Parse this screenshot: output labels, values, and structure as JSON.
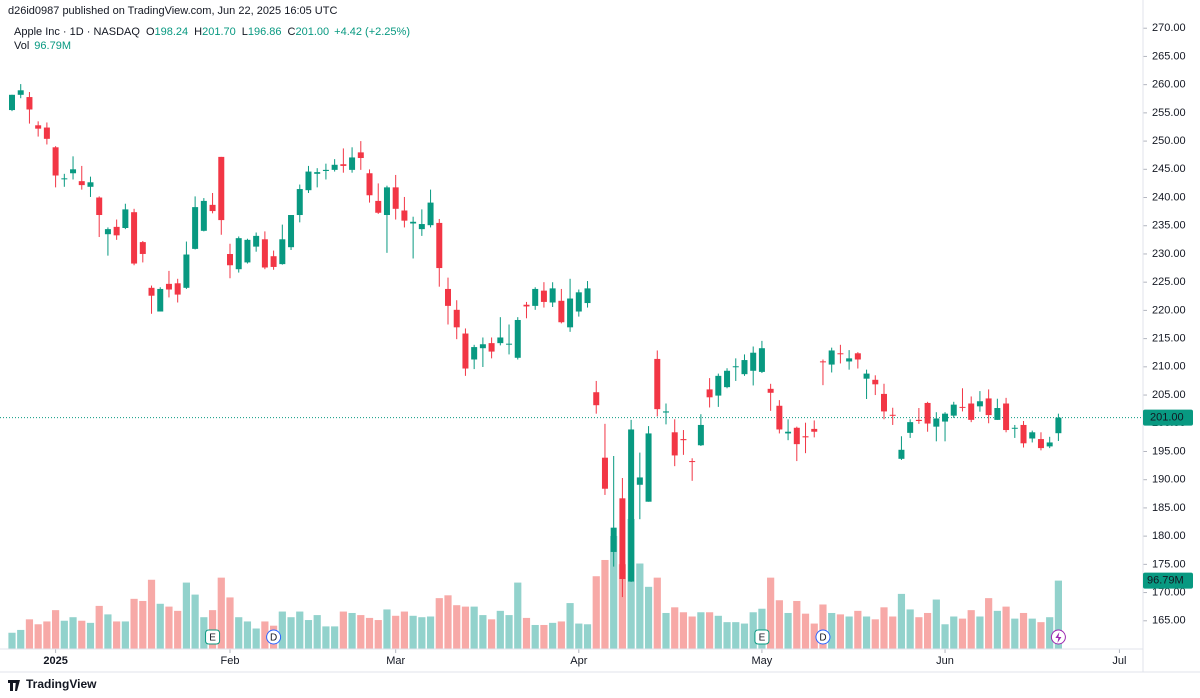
{
  "header": {
    "published": "d26id0987 published on TradingView.com, Jun 22, 2025 16:05 UTC",
    "symbol": "Apple Inc · 1D · NASDAQ",
    "ohlc_legend": [
      {
        "key": "O",
        "value": "198.24"
      },
      {
        "key": "H",
        "value": "201.70"
      },
      {
        "key": "L",
        "value": "196.86"
      },
      {
        "key": "C",
        "value": "201.00"
      }
    ],
    "change": "+4.42 (+2.25%)",
    "vol_key": "Vol",
    "vol_value": "96.79M"
  },
  "footer": {
    "brand": "TradingView"
  },
  "chart_data": {
    "type": "candlestick",
    "up_color": "#089981",
    "down_color": "#f23645",
    "volume_up_color": "#92d2cc",
    "volume_down_color": "#f7a9a7",
    "ylim": [
      160,
      275
    ],
    "yticks": [
      {
        "value": 165,
        "label": "165.00"
      },
      {
        "value": 170,
        "label": "170.00"
      },
      {
        "value": 175,
        "label": "175.00"
      },
      {
        "value": 180,
        "label": "180.00"
      },
      {
        "value": 185,
        "label": "185.00"
      },
      {
        "value": 190,
        "label": "190.00"
      },
      {
        "value": 195,
        "label": "195.00"
      },
      {
        "value": 200,
        "label": "200.00"
      },
      {
        "value": 205,
        "label": "205.00"
      },
      {
        "value": 210,
        "label": "210.00"
      },
      {
        "value": 215,
        "label": "215.00"
      },
      {
        "value": 220,
        "label": "220.00"
      },
      {
        "value": 225,
        "label": "225.00"
      },
      {
        "value": 230,
        "label": "230.00"
      },
      {
        "value": 235,
        "label": "235.00"
      },
      {
        "value": 240,
        "label": "240.00"
      },
      {
        "value": 245,
        "label": "245.00"
      },
      {
        "value": 250,
        "label": "250.00"
      },
      {
        "value": 255,
        "label": "255.00"
      },
      {
        "value": 260,
        "label": "260.00"
      },
      {
        "value": 265,
        "label": "265.00"
      },
      {
        "value": 270,
        "label": "270.00"
      }
    ],
    "xticks": [
      {
        "value": 5,
        "label": "2025"
      },
      {
        "value": 25,
        "label": "Feb"
      },
      {
        "value": 44,
        "label": "Mar"
      },
      {
        "value": 65,
        "label": "Apr"
      },
      {
        "value": 86,
        "label": "May"
      },
      {
        "value": 107,
        "label": "Jun"
      },
      {
        "value": 127,
        "label": "Jul"
      }
    ],
    "last_price": {
      "value": 201.0,
      "label": "201.00"
    },
    "last_volume_label": "96.79M",
    "events": [
      {
        "index": 23,
        "label": "E"
      },
      {
        "index": 30,
        "label": "D"
      },
      {
        "index": 86,
        "label": "E"
      },
      {
        "index": 93,
        "label": "D"
      }
    ],
    "open": [
      255.5,
      258.2,
      257.8,
      252.8,
      252.4,
      248.9,
      243.3,
      244.3,
      242.9,
      241.9,
      240.0,
      233.5,
      234.8,
      234.6,
      237.4,
      232.1,
      224.0,
      219.8,
      224.7,
      224.8,
      224.0,
      230.9,
      234.1,
      238.7,
      247.2,
      229.99,
      227.3,
      228.5,
      231.3,
      232.6,
      229.6,
      228.2,
      231.2,
      236.9,
      241.3,
      244.2,
      244.7,
      244.9,
      245.9,
      244.9,
      248.0,
      244.3,
      239.4,
      236.9,
      241.8,
      237.7,
      235.4,
      234.4,
      235.1,
      235.5,
      223.8,
      220.1,
      215.9,
      211.3,
      213.3,
      214.2,
      214.2,
      213.99,
      211.6,
      221.0,
      220.8,
      223.5,
      221.4,
      221.7,
      217.0,
      219.8,
      221.3,
      205.5,
      193.9,
      177.2,
      186.7,
      171.95,
      189.1,
      186.1,
      211.4,
      201.9,
      198.4,
      197.2,
      193.3,
      196.1,
      206.0,
      204.9,
      206.4,
      210.0,
      208.7,
      209.3,
      209.1,
      206.1,
      203.1,
      198.2,
      199.2,
      197.7,
      199.0,
      210.97,
      210.4,
      212.4,
      210.95,
      212.4,
      207.9,
      207.7,
      205.2,
      201.5,
      193.7,
      198.3,
      200.6,
      203.6,
      199.4,
      200.3,
      201.35,
      202.9,
      203.5,
      203.0,
      204.4,
      200.6,
      203.5,
      199.1,
      199.7,
      197.3,
      197.2,
      195.9,
      198.24
    ],
    "high": [
      258.2,
      260.1,
      258.7,
      253.5,
      253.3,
      249.1,
      244.2,
      247.3,
      245.6,
      243.7,
      240.2,
      234.7,
      236.1,
      238.9,
      238.0,
      232.3,
      224.4,
      224.1,
      227.0,
      225.6,
      232.2,
      240.2,
      239.9,
      240.8,
      247.2,
      231.8,
      233.1,
      232.7,
      233.8,
      234.0,
      230.6,
      235.2,
      236.9,
      242.3,
      245.6,
      245.2,
      246.0,
      246.8,
      248.7,
      248.9,
      250.0,
      244.98,
      242.5,
      242.1,
      244.0,
      240.1,
      236.6,
      237.9,
      241.4,
      236.2,
      225.8,
      221.8,
      216.8,
      213.9,
      215.2,
      215.2,
      218.8,
      217.5,
      218.8,
      221.5,
      224.1,
      225.0,
      224.99,
      223.8,
      225.6,
      223.7,
      225.2,
      207.5,
      199.9,
      194.2,
      190.3,
      200.6,
      194.8,
      199.5,
      212.9,
      203.5,
      200.7,
      198.8,
      193.8,
      201.6,
      208.0,
      208.8,
      209.75,
      211.5,
      212.2,
      213.6,
      214.6,
      206.99,
      204.1,
      200.7,
      199.4,
      200.1,
      200.5,
      211.3,
      213.4,
      213.9,
      212.96,
      212.6,
      209.5,
      208.5,
      207.0,
      202.75,
      197.7,
      200.7,
      202.7,
      203.8,
      201.96,
      201.96,
      203.8,
      206.2,
      204.75,
      205.7,
      206.0,
      204.35,
      204.5,
      199.7,
      200.4,
      198.7,
      198.4,
      197.6,
      201.7
    ],
    "low": [
      255.3,
      257.6,
      253.1,
      250.8,
      249.4,
      241.8,
      241.9,
      243.2,
      241.4,
      240.1,
      233.0,
      229.7,
      232.5,
      234.4,
      228.0,
      228.5,
      219.4,
      219.8,
      222.3,
      221.4,
      223.8,
      230.8,
      234.0,
      237.2,
      233.4,
      225.7,
      226.7,
      228.3,
      230.4,
      227.3,
      227.2,
      228.1,
      230.7,
      235.6,
      240.8,
      241.8,
      243.2,
      244.6,
      244.4,
      244.4,
      244.9,
      239.1,
      237.1,
      230.2,
      236.1,
      234.7,
      229.2,
      233.2,
      234.7,
      224.2,
      217.5,
      214.9,
      208.4,
      209.6,
      209.97,
      211.5,
      213.8,
      212.2,
      211.3,
      218.6,
      220.1,
      220.5,
      220.6,
      217.7,
      216.2,
      218.9,
      220.5,
      201.7,
      187.3,
      174.6,
      169.2,
      171.9,
      183.0,
      186.1,
      201.2,
      199.8,
      192.4,
      194.4,
      189.8,
      195.97,
      202.8,
      202.9,
      206.2,
      207.5,
      208.4,
      206.7,
      208.9,
      202.2,
      198.2,
      197.0,
      193.3,
      194.7,
      197.5,
      206.75,
      209.0,
      210.6,
      209.5,
      209.7,
      204.3,
      205.0,
      200.7,
      199.7,
      193.5,
      197.4,
      199.9,
      198.5,
      196.8,
      196.8,
      200.95,
      202.1,
      200.2,
      202.05,
      200.0,
      200.6,
      198.4,
      197.4,
      195.7,
      196.6,
      195.2,
      195.6,
      196.86
    ],
    "close": [
      258.2,
      259.0,
      255.6,
      252.2,
      250.4,
      243.9,
      243.4,
      245.0,
      242.2,
      242.7,
      236.9,
      234.4,
      233.3,
      237.9,
      228.3,
      230.0,
      222.6,
      223.8,
      223.7,
      222.8,
      229.9,
      238.3,
      239.4,
      237.6,
      236.0,
      228.0,
      232.8,
      232.5,
      233.2,
      227.6,
      227.7,
      232.6,
      236.9,
      241.5,
      244.6,
      244.5,
      244.9,
      245.8,
      245.6,
      247.1,
      247.0,
      240.4,
      237.3,
      241.8,
      238.0,
      235.9,
      235.7,
      235.3,
      239.1,
      227.5,
      220.8,
      217.0,
      209.7,
      213.5,
      214.0,
      212.7,
      215.2,
      214.1,
      218.3,
      220.7,
      223.8,
      221.5,
      223.9,
      217.9,
      222.1,
      223.2,
      223.9,
      203.2,
      188.4,
      181.5,
      172.4,
      198.9,
      190.4,
      198.2,
      202.5,
      202.1,
      194.3,
      197.0,
      193.2,
      199.7,
      204.6,
      208.4,
      209.3,
      210.1,
      211.2,
      212.5,
      213.3,
      205.4,
      198.9,
      198.5,
      196.3,
      197.5,
      198.5,
      210.8,
      212.9,
      212.3,
      211.5,
      211.3,
      208.8,
      206.9,
      202.1,
      201.4,
      195.3,
      200.2,
      200.4,
      199.95,
      200.85,
      201.7,
      203.3,
      202.8,
      200.6,
      203.9,
      201.45,
      202.7,
      198.8,
      199.2,
      196.45,
      198.4,
      195.6,
      196.6,
      201.0
    ],
    "volume": [
      23,
      27,
      42,
      35,
      39,
      55,
      40,
      45,
      40,
      37,
      61,
      49,
      39,
      39,
      71,
      68,
      98,
      64,
      60,
      54,
      94,
      77,
      45,
      55,
      101,
      73,
      45,
      39,
      29,
      39,
      33,
      53,
      45,
      53,
      41,
      48,
      32,
      32,
      53,
      51,
      48,
      44,
      41,
      56,
      47,
      53,
      47,
      45,
      46,
      72,
      76,
      62,
      60,
      60,
      48,
      42,
      54,
      48,
      94,
      44,
      34,
      34,
      37,
      39,
      65,
      36,
      35,
      103,
      126,
      160,
      120,
      184,
      121,
      88,
      101,
      51,
      59,
      52,
      46,
      52,
      52,
      47,
      38,
      38,
      36,
      52,
      57,
      101,
      69,
      51,
      68,
      50,
      36,
      63,
      51,
      49,
      46,
      54,
      46,
      42,
      59,
      46,
      78,
      56,
      45,
      51,
      70,
      35,
      46,
      43,
      55,
      46,
      72,
      54,
      60,
      43,
      51,
      43,
      38,
      45,
      96.79
    ]
  }
}
